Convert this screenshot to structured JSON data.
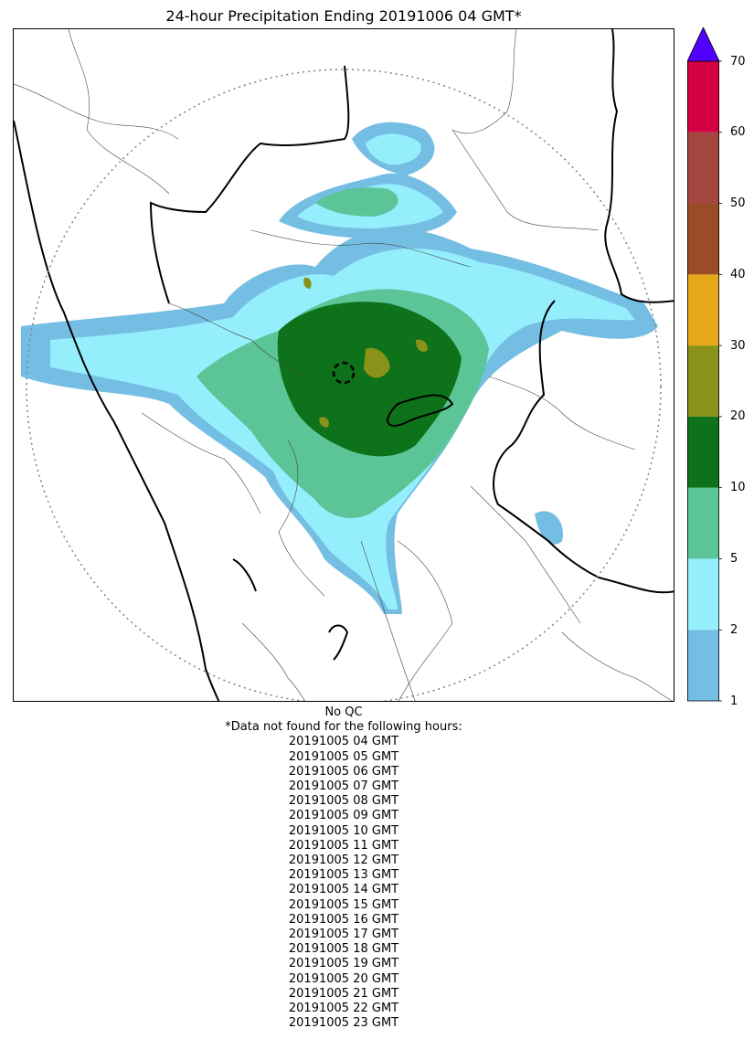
{
  "title": "24-hour Precipitation Ending 20191006 04 GMT*",
  "colorbar": {
    "ticks": [
      "1",
      "2",
      "5",
      "10",
      "20",
      "30",
      "40",
      "50",
      "60",
      "70"
    ],
    "colors": [
      "#75bee3",
      "#95eefc",
      "#5cc598",
      "#0d7219",
      "#8a9319",
      "#e5a81a",
      "#9a4d24",
      "#a3463f",
      "#d40044"
    ],
    "extend_color": "#5200ff"
  },
  "footer": {
    "qc": "No QC",
    "note": "*Data not found for the following hours:",
    "hours": [
      "20191005 04 GMT",
      "20191005 05 GMT",
      "20191005 06 GMT",
      "20191005 07 GMT",
      "20191005 08 GMT",
      "20191005 09 GMT",
      "20191005 10 GMT",
      "20191005 11 GMT",
      "20191005 12 GMT",
      "20191005 13 GMT",
      "20191005 14 GMT",
      "20191005 15 GMT",
      "20191005 16 GMT",
      "20191005 17 GMT",
      "20191005 18 GMT",
      "20191005 19 GMT",
      "20191005 20 GMT",
      "20191005 21 GMT",
      "20191005 22 GMT",
      "20191005 23 GMT"
    ]
  }
}
